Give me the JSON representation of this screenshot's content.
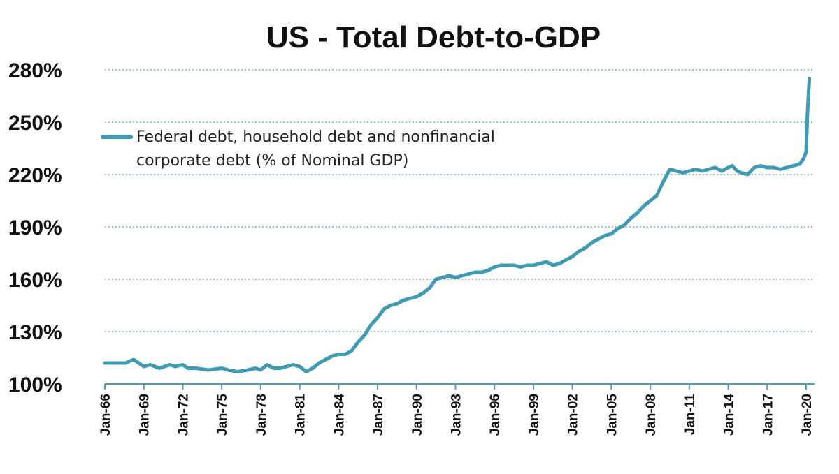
{
  "chart_data": {
    "type": "line",
    "title": "US - Total Debt-to-GDP",
    "ylim": [
      100,
      280
    ],
    "yticks": [
      100,
      130,
      160,
      190,
      220,
      250,
      280
    ],
    "ytick_labels": [
      "100%",
      "130%",
      "160%",
      "190%",
      "220%",
      "250%",
      "280%"
    ],
    "xlim": [
      1966.0,
      2020.5
    ],
    "xticks": [
      1966,
      1969,
      1972,
      1975,
      1978,
      1981,
      1984,
      1987,
      1990,
      1993,
      1996,
      1999,
      2002,
      2005,
      2008,
      2011,
      2014,
      2017,
      2020
    ],
    "xtick_labels": [
      "Jan-66",
      "Jan-69",
      "Jan-72",
      "Jan-75",
      "Jan-78",
      "Jan-81",
      "Jan-84",
      "Jan-87",
      "Jan-90",
      "Jan-93",
      "Jan-96",
      "Jan-99",
      "Jan-02",
      "Jan-05",
      "Jan-08",
      "Jan-11",
      "Jan-14",
      "Jan-17",
      "Jan-20"
    ],
    "grid": "horizontal dotted",
    "legend_position": "upper-left",
    "colors": {
      "series": "#3f9bb3",
      "grid": "#4aa0b8"
    },
    "series": [
      {
        "name": "Federal debt, household debt and nonfinancial corporate debt (% of Nominal GDP)",
        "legend_lines": [
          "Federal debt, household debt and nonfinancial",
          "corporate debt (% of Nominal GDP)"
        ],
        "x": [
          1966.0,
          1967.0,
          1967.6,
          1968.2,
          1969.0,
          1969.5,
          1970.2,
          1970.6,
          1971.0,
          1971.4,
          1972.0,
          1972.4,
          1973.0,
          1974.0,
          1975.0,
          1975.5,
          1976.2,
          1977.0,
          1977.6,
          1978.0,
          1978.5,
          1979.0,
          1979.5,
          1980.0,
          1980.5,
          1981.0,
          1981.5,
          1982.0,
          1982.5,
          1983.0,
          1983.5,
          1984.0,
          1984.5,
          1985.0,
          1985.5,
          1986.0,
          1986.5,
          1987.0,
          1987.5,
          1988.0,
          1988.5,
          1989.0,
          1989.5,
          1990.0,
          1990.5,
          1991.0,
          1991.5,
          1992.0,
          1992.5,
          1993.0,
          1993.5,
          1994.0,
          1994.5,
          1995.0,
          1995.5,
          1996.0,
          1996.5,
          1997.0,
          1997.5,
          1998.0,
          1998.5,
          1999.0,
          1999.5,
          2000.0,
          2000.5,
          2001.0,
          2001.5,
          2002.0,
          2002.5,
          2003.0,
          2003.5,
          2004.0,
          2004.5,
          2005.0,
          2005.5,
          2006.0,
          2006.5,
          2007.0,
          2007.5,
          2008.0,
          2008.5,
          2009.0,
          2009.5,
          2010.0,
          2010.5,
          2011.0,
          2011.5,
          2012.0,
          2012.5,
          2013.0,
          2013.5,
          2014.0,
          2014.3,
          2014.7,
          2015.0,
          2015.5,
          2016.0,
          2016.5,
          2017.0,
          2017.5,
          2018.0,
          2018.5,
          2019.0,
          2019.5,
          2019.8,
          2020.0,
          2020.1,
          2020.25
        ],
        "y": [
          112,
          112,
          112,
          114,
          110,
          111,
          109,
          110,
          111,
          110,
          111,
          109,
          109,
          108,
          109,
          108,
          107,
          108,
          109,
          108,
          111,
          109,
          109,
          110,
          111,
          110,
          107,
          109,
          112,
          114,
          116,
          117,
          117,
          119,
          124,
          128,
          134,
          138,
          143,
          145,
          146,
          148,
          149,
          150,
          152,
          155,
          160,
          161,
          162,
          161,
          162,
          163,
          164,
          164,
          165,
          167,
          168,
          168,
          168,
          167,
          168,
          168,
          169,
          170,
          168,
          169,
          171,
          173,
          176,
          178,
          181,
          183,
          185,
          186,
          189,
          191,
          195,
          198,
          202,
          205,
          208,
          216,
          223,
          222,
          221,
          222,
          223,
          222,
          223,
          224,
          222,
          224,
          225,
          222,
          221,
          220,
          224,
          225,
          224,
          224,
          223,
          224,
          225,
          226,
          229,
          233,
          255,
          275
        ]
      }
    ]
  }
}
